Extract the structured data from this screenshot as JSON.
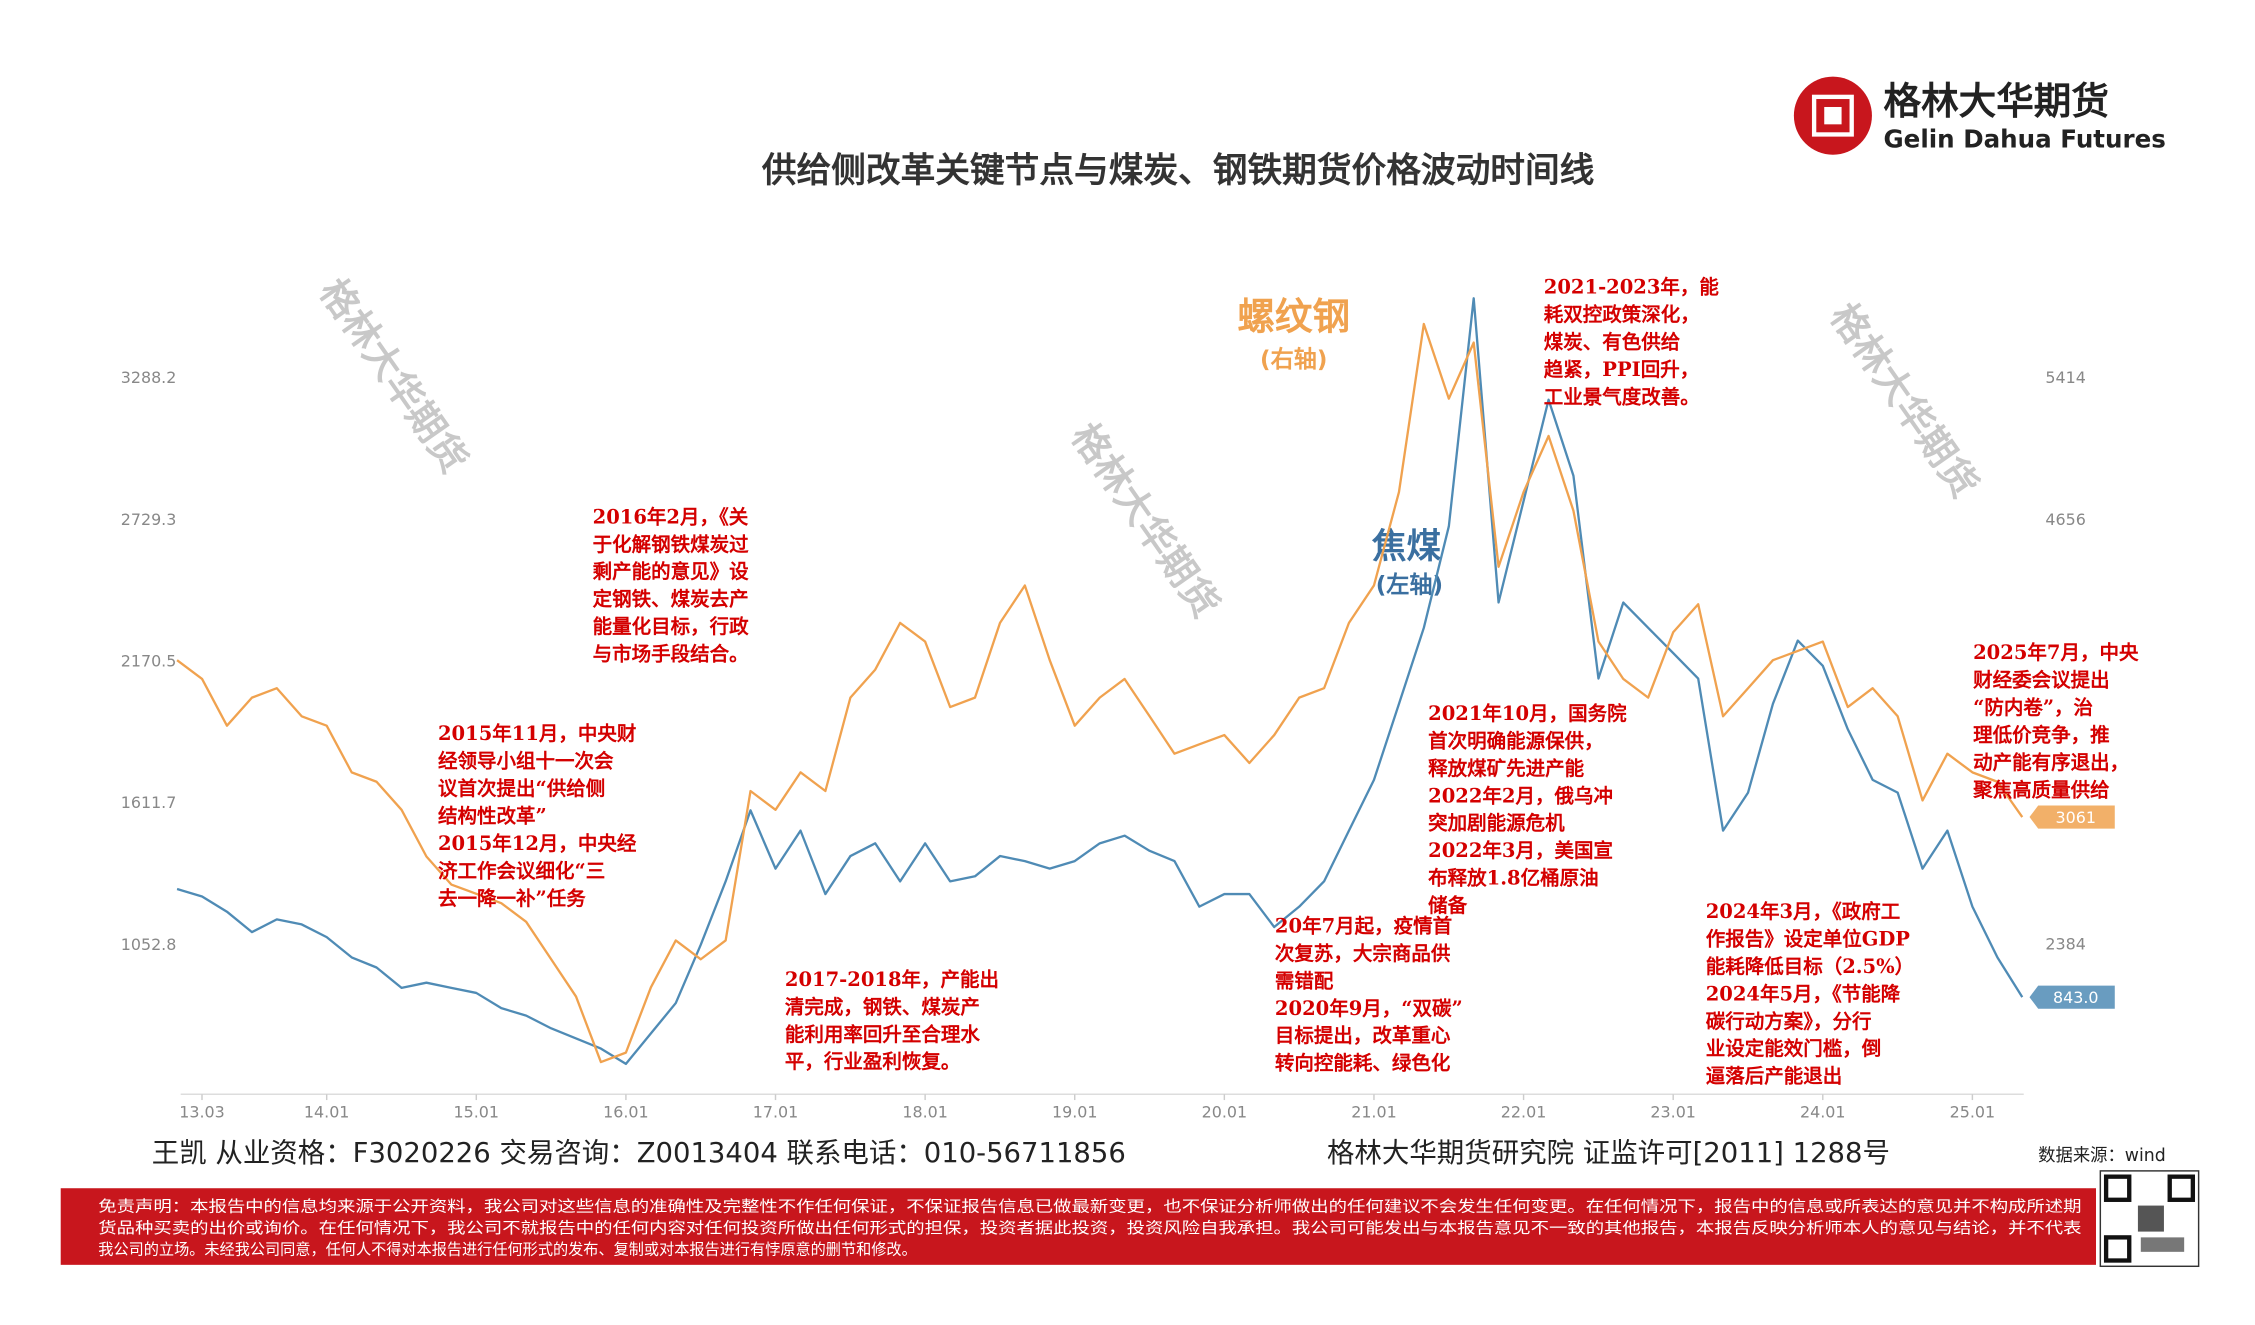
{
  "header": {
    "logo_cn": "格林大华期货",
    "logo_en": "Gelin Dahua Futures"
  },
  "watermark": "格林大华期货",
  "chart_data": {
    "type": "line",
    "title": "供给侧改革关键节点与煤炭、钢铁期货价格波动时间线",
    "x": [
      "2013-01",
      "2013-03",
      "2013-05",
      "2013-07",
      "2013-09",
      "2013-11",
      "2014-01",
      "2014-03",
      "2014-05",
      "2014-07",
      "2014-09",
      "2014-11",
      "2015-01",
      "2015-03",
      "2015-05",
      "2015-07",
      "2015-09",
      "2015-11",
      "2016-01",
      "2016-03",
      "2016-05",
      "2016-07",
      "2016-09",
      "2016-11",
      "2017-01",
      "2017-03",
      "2017-05",
      "2017-07",
      "2017-09",
      "2017-11",
      "2018-01",
      "2018-03",
      "2018-05",
      "2018-07",
      "2018-09",
      "2018-11",
      "2019-01",
      "2019-03",
      "2019-05",
      "2019-07",
      "2019-09",
      "2019-11",
      "2020-01",
      "2020-03",
      "2020-05",
      "2020-07",
      "2020-09",
      "2020-11",
      "2021-01",
      "2021-03",
      "2021-05",
      "2021-07",
      "2021-09",
      "2021-11",
      "2022-01",
      "2022-03",
      "2022-05",
      "2022-07",
      "2022-09",
      "2022-11",
      "2023-01",
      "2023-03",
      "2023-05",
      "2023-07",
      "2023-09",
      "2023-11",
      "2024-01",
      "2024-03",
      "2024-05",
      "2024-07",
      "2024-09",
      "2024-11",
      "2025-01",
      "2025-03",
      "2025-05"
    ],
    "series": [
      {
        "name": "焦煤",
        "axis_label": "(左轴)",
        "color": "#4f8bb5",
        "axis": "y",
        "values": [
          1270,
          1240,
          1180,
          1100,
          1150,
          1130,
          1080,
          1000,
          960,
          880,
          900,
          880,
          860,
          800,
          770,
          720,
          680,
          640,
          580,
          700,
          820,
          1050,
          1300,
          1580,
          1350,
          1500,
          1250,
          1400,
          1450,
          1300,
          1450,
          1300,
          1320,
          1400,
          1380,
          1350,
          1380,
          1450,
          1480,
          1420,
          1380,
          1200,
          1250,
          1250,
          1120,
          1200,
          1300,
          1500,
          1700,
          2000,
          2300,
          2700,
          3600,
          2400,
          2800,
          3200,
          2900,
          2100,
          2400,
          2300,
          2200,
          2100,
          1500,
          1650,
          2000,
          2250,
          2150,
          1900,
          1700,
          1650,
          1350,
          1500,
          1200,
          1000,
          843
        ],
        "value_labels": [
          null,
          null,
          null,
          null,
          null,
          null,
          null,
          null,
          null,
          null,
          null,
          null,
          null,
          null,
          null,
          null,
          null,
          null,
          null,
          null,
          null,
          null,
          null,
          null,
          null,
          null,
          null,
          null,
          null,
          null,
          null,
          null,
          null,
          null,
          null,
          null,
          null,
          null,
          null,
          null,
          null,
          null,
          null,
          null,
          null,
          null,
          null,
          null,
          null,
          null,
          null,
          null,
          null,
          null,
          null,
          null,
          null,
          null,
          null,
          null,
          null,
          null,
          null,
          null,
          null,
          null,
          null,
          null,
          null,
          null,
          null,
          null,
          null,
          null,
          "843.0"
        ]
      },
      {
        "name": "螺纹钢",
        "axis_label": "(右轴)",
        "color": "#f0a24f",
        "axis": "y2",
        "values": [
          3900,
          3800,
          3550,
          3700,
          3750,
          3600,
          3550,
          3300,
          3250,
          3100,
          2850,
          2700,
          2650,
          2600,
          2500,
          2300,
          2100,
          1750,
          1800,
          2150,
          2400,
          2300,
          2400,
          3200,
          3100,
          3300,
          3200,
          3700,
          3850,
          4100,
          4000,
          3650,
          3700,
          4100,
          4300,
          3900,
          3550,
          3700,
          3800,
          3600,
          3400,
          3450,
          3500,
          3350,
          3500,
          3700,
          3750,
          4100,
          4300,
          4800,
          5700,
          5300,
          5600,
          4400,
          4800,
          5100,
          4700,
          4000,
          3800,
          3700,
          4050,
          4200,
          3600,
          3750,
          3900,
          3950,
          4000,
          3650,
          3750,
          3600,
          3150,
          3400,
          3300,
          3250,
          3061
        ]
      }
    ],
    "xticks": [
      {
        "value": "2013-03",
        "label": "13.03"
      },
      {
        "value": "2014-01",
        "label": "14.01"
      },
      {
        "value": "2015-01",
        "label": "15.01"
      },
      {
        "value": "2016-01",
        "label": "16.01"
      },
      {
        "value": "2017-01",
        "label": "17.01"
      },
      {
        "value": "2018-01",
        "label": "18.01"
      },
      {
        "value": "2019-01",
        "label": "19.01"
      },
      {
        "value": "2020-01",
        "label": "20.01"
      },
      {
        "value": "2021-01",
        "label": "21.01"
      },
      {
        "value": "2022-01",
        "label": "22.01"
      },
      {
        "value": "2023-01",
        "label": "23.01"
      },
      {
        "value": "2024-01",
        "label": "24.01"
      },
      {
        "value": "2025-01",
        "label": "25.01"
      }
    ],
    "ylim": [
      443,
      3921
    ],
    "yticks": [
      1052.8,
      1611.7,
      2170.5,
      2729.3,
      3288.2
    ],
    "y2lim": [
      1554,
      6273
    ],
    "y2ticks": [
      2384,
      4656,
      5414
    ],
    "grid": false,
    "annotations": [
      {
        "lines": [
          "2016年2月，《关",
          "于化解钢铁煤炭过",
          "剩产能的意见》设",
          "定钢铁、煤炭去产",
          "能量化目标，行政",
          "与市场手段结合。"
        ]
      },
      {
        "lines": [
          "2015年11月，中央财",
          "经领导小组十一次会",
          "议首次提出“供给侧",
          "结构性改革”",
          "2015年12月，中央经",
          "济工作会议细化“三",
          "去一降一补”任务"
        ]
      },
      {
        "lines": [
          "2017-2018年，产能出",
          "清完成，钢铁、煤炭产",
          "能利用率回升至合理水",
          "平，行业盈利恢复。"
        ]
      },
      {
        "lines": [
          "20年7月起，疫情首",
          "次复苏，大宗商品供",
          "需错配",
          "2020年9月，“双碳”",
          "目标提出，改革重心",
          "转向控能耗、绿色化"
        ]
      },
      {
        "lines": [
          "2021年10月，国务院",
          "首次明确能源保供，",
          "释放煤矿先进产能",
          "2022年2月，俄乌冲",
          "突加剧能源危机",
          "2022年3月，美国宣",
          "布释放1.8亿桶原油",
          "储备"
        ]
      },
      {
        "lines": [
          "2021-2023年，能",
          "耗双控政策深化，",
          "煤炭、有色供给",
          "趋紧，PPI回升，",
          "工业景气度改善。"
        ]
      },
      {
        "lines": [
          "2024年3月，《政府工",
          "作报告》设定单位GDP",
          "能耗降低目标（2.5%）",
          "2024年5月，《节能降",
          "碳行动方案》，分行",
          "业设定能效门槛，倒",
          "逼落后产能退出"
        ]
      },
      {
        "lines": [
          "2025年7月，中央",
          "财经委会议提出",
          "“防内卷”，治",
          "理低价竞争，推",
          "动产能有序退出，",
          "聚焦高质量供给"
        ]
      }
    ]
  },
  "footer": {
    "contact": "王凯  从业资格：F3020226  交易咨询：Z0013404  联系电话：010-56711856",
    "institute": "格林大华期货研究院  证监许可[2011]  1288号",
    "source": "数据来源：wind",
    "disclaimer": [
      "免责声明：本报告中的信息均来源于公开资料，我公司对这些信息的准确性及完整性不作任何保证，不保证报告信息已做最新变更，也不保证分析师做出的任何建议不会发生任何变更。在任何情况下，报告中的信息或所表达的意见并不构成所述期",
      "货品种买卖的出价或询价。在任何情况下，我公司不就报告中的任何内容对任何投资所做出任何形式的担保，投资者据此投资，投资风险自我承担。我公司可能发出与本报告意见不一致的其他报告，本报告反映分析师本人的意见与结论，并不代表",
      "我公司的立场。未经我公司同意，任何人不得对本报告进行任何形式的发布、复制或对本报告进行有悖原意的删节和修改。"
    ]
  }
}
